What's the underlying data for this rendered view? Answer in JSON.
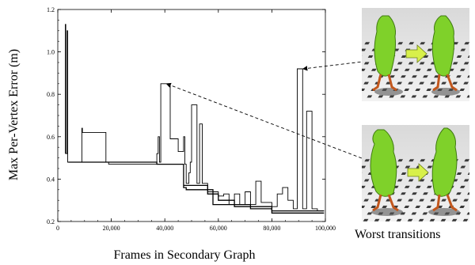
{
  "chart_data": {
    "type": "line",
    "title": "",
    "xlabel": "Frames in Secondary Graph",
    "ylabel": "Max Per-Vertex Error (m)",
    "xlim": [
      0,
      100000
    ],
    "ylim": [
      0.2,
      1.2
    ],
    "xticks": [
      0,
      20000,
      40000,
      60000,
      80000,
      100000
    ],
    "xtick_labels": [
      "0",
      "20,000",
      "40,000",
      "60,000",
      "80,000",
      "100,000"
    ],
    "yticks": [
      0.2,
      0.4,
      0.6,
      0.8,
      1.0,
      1.2
    ],
    "ytick_labels": [
      "0.2",
      "0.4",
      "0.6",
      "0.8",
      "1.0",
      "1.2"
    ],
    "grid": false,
    "legend": false,
    "series": [
      {
        "color": "#000000",
        "points": [
          [
            2800,
            0.52
          ],
          [
            2800,
            1.13
          ],
          [
            3000,
            1.13
          ],
          [
            3000,
            0.52
          ],
          [
            3500,
            0.52
          ],
          [
            3500,
            1.1
          ],
          [
            3700,
            1.1
          ],
          [
            3700,
            0.48
          ],
          [
            9000,
            0.48
          ],
          [
            9000,
            0.64
          ],
          [
            9200,
            0.64
          ],
          [
            9200,
            0.62
          ],
          [
            12000,
            0.62
          ],
          [
            18000,
            0.62
          ],
          [
            18000,
            0.48
          ],
          [
            19000,
            0.48
          ],
          [
            19000,
            0.47
          ],
          [
            37000,
            0.47
          ],
          [
            37000,
            0.52
          ],
          [
            37500,
            0.52
          ],
          [
            37500,
            0.6
          ],
          [
            38000,
            0.6
          ],
          [
            38000,
            0.48
          ],
          [
            38500,
            0.48
          ],
          [
            38500,
            0.85
          ],
          [
            42000,
            0.85
          ],
          [
            42000,
            0.59
          ],
          [
            45000,
            0.59
          ],
          [
            45000,
            0.53
          ],
          [
            47000,
            0.53
          ],
          [
            47000,
            0.6
          ],
          [
            47500,
            0.6
          ],
          [
            47500,
            0.47
          ],
          [
            48000,
            0.47
          ],
          [
            48000,
            0.38
          ],
          [
            49000,
            0.38
          ],
          [
            49000,
            0.43
          ],
          [
            49500,
            0.43
          ],
          [
            49500,
            0.48
          ],
          [
            50000,
            0.48
          ],
          [
            50000,
            0.75
          ],
          [
            52000,
            0.75
          ],
          [
            52000,
            0.38
          ],
          [
            53000,
            0.38
          ],
          [
            53000,
            0.66
          ],
          [
            54000,
            0.66
          ],
          [
            54000,
            0.38
          ],
          [
            56000,
            0.38
          ],
          [
            56000,
            0.34
          ],
          [
            60000,
            0.34
          ],
          [
            60000,
            0.32
          ],
          [
            62000,
            0.32
          ],
          [
            62000,
            0.33
          ],
          [
            64000,
            0.33
          ],
          [
            64000,
            0.28
          ],
          [
            66000,
            0.28
          ],
          [
            66000,
            0.33
          ],
          [
            68000,
            0.33
          ],
          [
            68000,
            0.28
          ],
          [
            70000,
            0.28
          ],
          [
            70000,
            0.34
          ],
          [
            72000,
            0.34
          ],
          [
            72000,
            0.28
          ],
          [
            74000,
            0.28
          ],
          [
            74000,
            0.39
          ],
          [
            76000,
            0.39
          ],
          [
            76000,
            0.29
          ],
          [
            78000,
            0.29
          ],
          [
            78000,
            0.29
          ],
          [
            80000,
            0.29
          ],
          [
            80000,
            0.27
          ],
          [
            82000,
            0.27
          ],
          [
            82000,
            0.33
          ],
          [
            84000,
            0.33
          ],
          [
            84000,
            0.36
          ],
          [
            86000,
            0.36
          ],
          [
            86000,
            0.3
          ],
          [
            88000,
            0.3
          ],
          [
            88000,
            0.26
          ],
          [
            89500,
            0.26
          ],
          [
            89500,
            0.92
          ],
          [
            91500,
            0.92
          ],
          [
            91500,
            0.26
          ],
          [
            93000,
            0.26
          ],
          [
            93000,
            0.72
          ],
          [
            95000,
            0.72
          ],
          [
            95000,
            0.26
          ],
          [
            97000,
            0.26
          ],
          [
            97000,
            0.25
          ],
          [
            99500,
            0.25
          ]
        ]
      },
      {
        "color": "#000000",
        "points": [
          [
            4000,
            0.48
          ],
          [
            37000,
            0.48
          ],
          [
            37000,
            0.47
          ],
          [
            47000,
            0.47
          ],
          [
            47000,
            0.36
          ],
          [
            48000,
            0.36
          ],
          [
            48000,
            0.35
          ],
          [
            58000,
            0.35
          ],
          [
            58000,
            0.28
          ],
          [
            72000,
            0.28
          ],
          [
            72000,
            0.26
          ],
          [
            80000,
            0.26
          ],
          [
            80000,
            0.24
          ],
          [
            99500,
            0.24
          ]
        ]
      },
      {
        "color": "#000000",
        "points": [
          [
            47000,
            0.37
          ],
          [
            56000,
            0.37
          ],
          [
            56000,
            0.33
          ],
          [
            60000,
            0.33
          ],
          [
            60000,
            0.3
          ],
          [
            66000,
            0.3
          ],
          [
            66000,
            0.27
          ],
          [
            80000,
            0.27
          ],
          [
            80000,
            0.25
          ],
          [
            99500,
            0.25
          ]
        ]
      }
    ],
    "annotations": [
      {
        "from": [
          40000,
          0.85
        ],
        "to_thumbnail": "worst-transition-pair-bottom"
      },
      {
        "from": [
          91000,
          0.92
        ],
        "to_thumbnail": "worst-transition-pair-top"
      }
    ]
  },
  "figure": {
    "caption": "Worst transitions",
    "thumbnails": [
      {
        "name": "worst-transition-pair-top",
        "description_icon": "green-cloaked-figure-walking"
      },
      {
        "name": "worst-transition-pair-bottom",
        "description_icon": "green-cloaked-figure-walking"
      }
    ],
    "arrow_icon": "yellow-green-right-arrow-icon",
    "colors": {
      "line": "#000000",
      "cloak": "#7fd12a",
      "floor": "#e8e8e8",
      "shadow": "#4a4a4a",
      "skin": "#c2571d"
    }
  }
}
